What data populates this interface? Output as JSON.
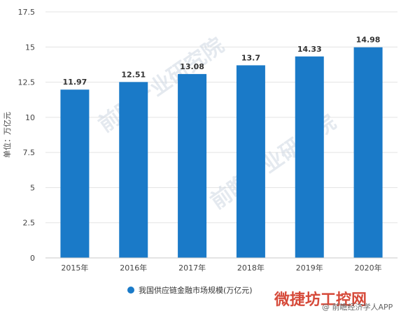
{
  "chart_data": {
    "type": "bar",
    "categories": [
      "2015年",
      "2016年",
      "2017年",
      "2018年",
      "2019年",
      "2020年"
    ],
    "series": [
      {
        "name": "我国供应链金融市场规模(万亿元)",
        "values": [
          11.97,
          12.51,
          13.08,
          13.7,
          14.33,
          14.98
        ],
        "labels": [
          "11.97",
          "12.51",
          "13.08",
          "13.7",
          "14.33",
          "14.98"
        ]
      }
    ],
    "ylabel": "单位：万亿元",
    "ylim": [
      0,
      17.5
    ],
    "yticks": [
      0,
      2.5,
      5,
      7.5,
      10,
      12.5,
      15,
      17.5
    ],
    "ytick_labels": [
      "0",
      "2.5",
      "5",
      "7.5",
      "10",
      "12.5",
      "15",
      "17.5"
    ],
    "grid": true,
    "legend_position": "bottom-center",
    "bar_color": "#1a7ac8",
    "grid_color": "#e3e3e3"
  },
  "watermarks": {
    "center": "前瞻产业研究院",
    "corner_main": "微捷坊工控网",
    "corner_sub": "@ 前瞻经济学人APP"
  }
}
